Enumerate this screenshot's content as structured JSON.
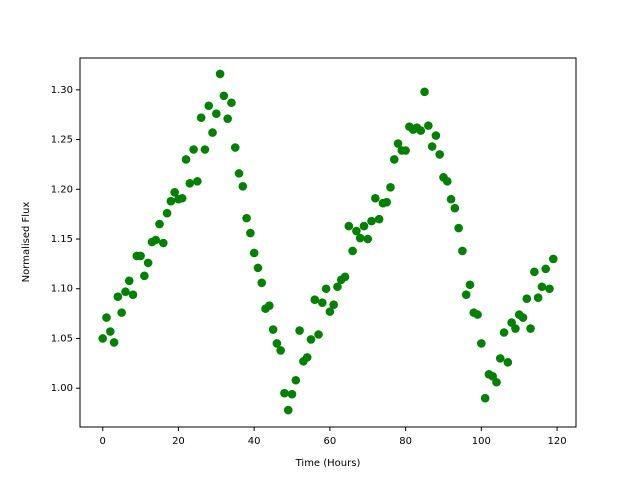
{
  "chart_data": {
    "type": "scatter",
    "color": "#008000",
    "xlabel": "Time (Hours)",
    "ylabel": "Normalised Flux",
    "x": [
      0,
      1,
      2,
      3,
      4,
      5,
      6,
      7,
      8,
      9,
      10,
      11,
      12,
      13,
      14,
      15,
      16,
      17,
      18,
      19,
      20,
      21,
      22,
      23,
      24,
      25,
      26,
      27,
      28,
      29,
      30,
      31,
      32,
      33,
      34,
      35,
      36,
      37,
      38,
      39,
      40,
      41,
      42,
      43,
      44,
      45,
      46,
      47,
      48,
      49,
      50,
      51,
      52,
      53,
      54,
      55,
      56,
      57,
      58,
      59,
      60,
      61,
      62,
      63,
      64,
      65,
      66,
      67,
      68,
      69,
      70,
      71,
      72,
      73,
      74,
      75,
      76,
      77,
      78,
      79,
      80,
      81,
      82,
      83,
      84,
      85,
      86,
      87,
      88,
      89,
      90,
      91,
      92,
      93,
      94,
      95,
      96,
      97,
      98,
      99,
      100,
      101,
      102,
      103,
      104,
      105,
      106,
      107,
      108,
      109,
      110,
      111,
      112,
      113,
      114,
      115,
      116,
      117,
      118,
      119
    ],
    "values": [
      1.05,
      1.071,
      1.057,
      1.046,
      1.092,
      1.076,
      1.097,
      1.108,
      1.094,
      1.133,
      1.133,
      1.113,
      1.126,
      1.147,
      1.149,
      1.165,
      1.146,
      1.176,
      1.188,
      1.197,
      1.19,
      1.191,
      1.23,
      1.206,
      1.24,
      1.208,
      1.272,
      1.24,
      1.284,
      1.257,
      1.276,
      1.316,
      1.294,
      1.271,
      1.287,
      1.242,
      1.216,
      1.203,
      1.171,
      1.156,
      1.136,
      1.121,
      1.106,
      1.08,
      1.083,
      1.059,
      1.045,
      1.038,
      0.995,
      0.978,
      0.994,
      1.008,
      1.058,
      1.027,
      1.031,
      1.049,
      1.089,
      1.054,
      1.086,
      1.1,
      1.077,
      1.084,
      1.102,
      1.109,
      1.112,
      1.163,
      1.138,
      1.158,
      1.151,
      1.163,
      1.15,
      1.168,
      1.191,
      1.17,
      1.186,
      1.187,
      1.202,
      1.23,
      1.246,
      1.239,
      1.239,
      1.263,
      1.26,
      1.262,
      1.259,
      1.298,
      1.264,
      1.243,
      1.254,
      1.235,
      1.212,
      1.208,
      1.19,
      1.181,
      1.161,
      1.138,
      1.094,
      1.104,
      1.076,
      1.074,
      1.045,
      0.99,
      1.014,
      1.012,
      1.006,
      1.03,
      1.056,
      1.026,
      1.066,
      1.06,
      1.074,
      1.071,
      1.09,
      1.06,
      1.117,
      1.091,
      1.102,
      1.12,
      1.1,
      1.13
    ],
    "xlim": [
      -6,
      125
    ],
    "ylim": [
      0.961,
      1.332
    ],
    "xticks": [
      0,
      20,
      40,
      60,
      80,
      100,
      120
    ],
    "yticks": [
      {
        "value": 1.0,
        "label": "1.00"
      },
      {
        "value": 1.05,
        "label": "1.05"
      },
      {
        "value": 1.1,
        "label": "1.10"
      },
      {
        "value": 1.15,
        "label": "1.15"
      },
      {
        "value": 1.2,
        "label": "1.20"
      },
      {
        "value": 1.25,
        "label": "1.25"
      },
      {
        "value": 1.3,
        "label": "1.30"
      }
    ]
  }
}
